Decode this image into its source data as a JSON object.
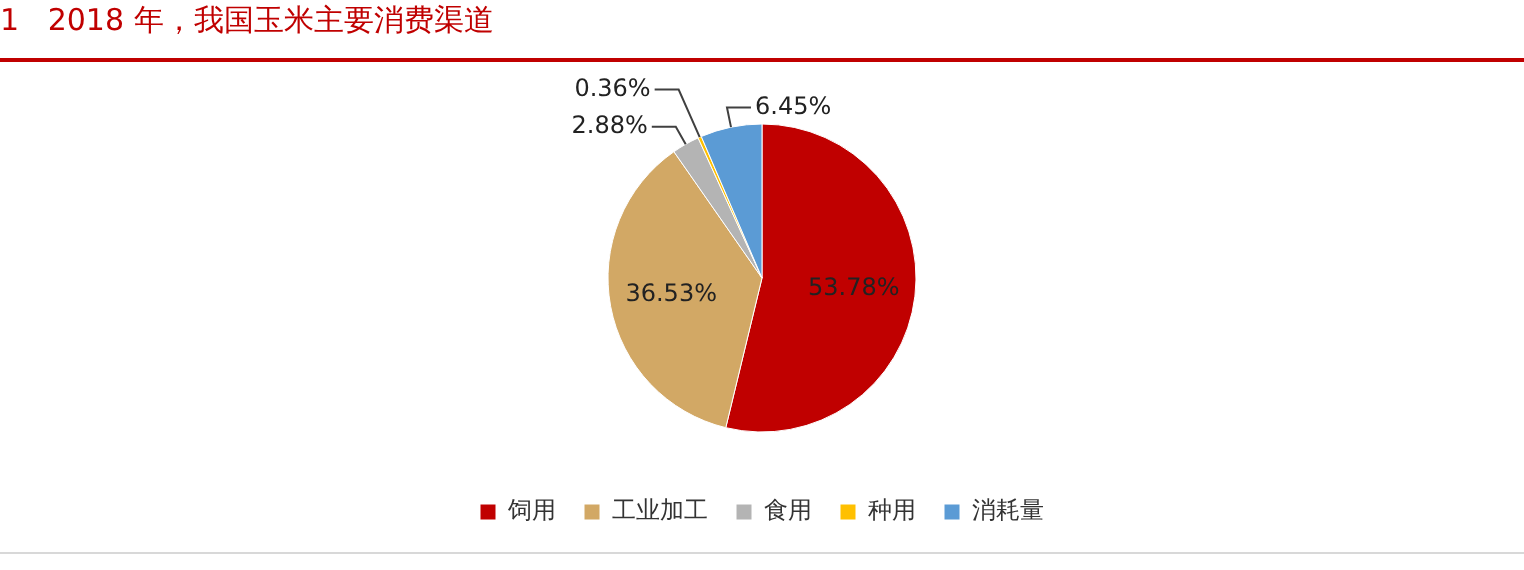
{
  "chart_data": {
    "type": "pie",
    "title": "1   2018 年，我国玉米主要消费渠道",
    "categories": [
      "饲用",
      "工业加工",
      "食用",
      "种用",
      "消耗量"
    ],
    "values": [
      53.78,
      36.53,
      2.88,
      0.36,
      6.45
    ],
    "colors": [
      "#c00000",
      "#d2a865",
      "#b4b4b4",
      "#ffc000",
      "#5b9bd5"
    ],
    "value_labels": [
      "53.78%",
      "36.53%",
      "2.88%",
      "0.36%",
      "6.45%"
    ],
    "legend": "bottom"
  }
}
